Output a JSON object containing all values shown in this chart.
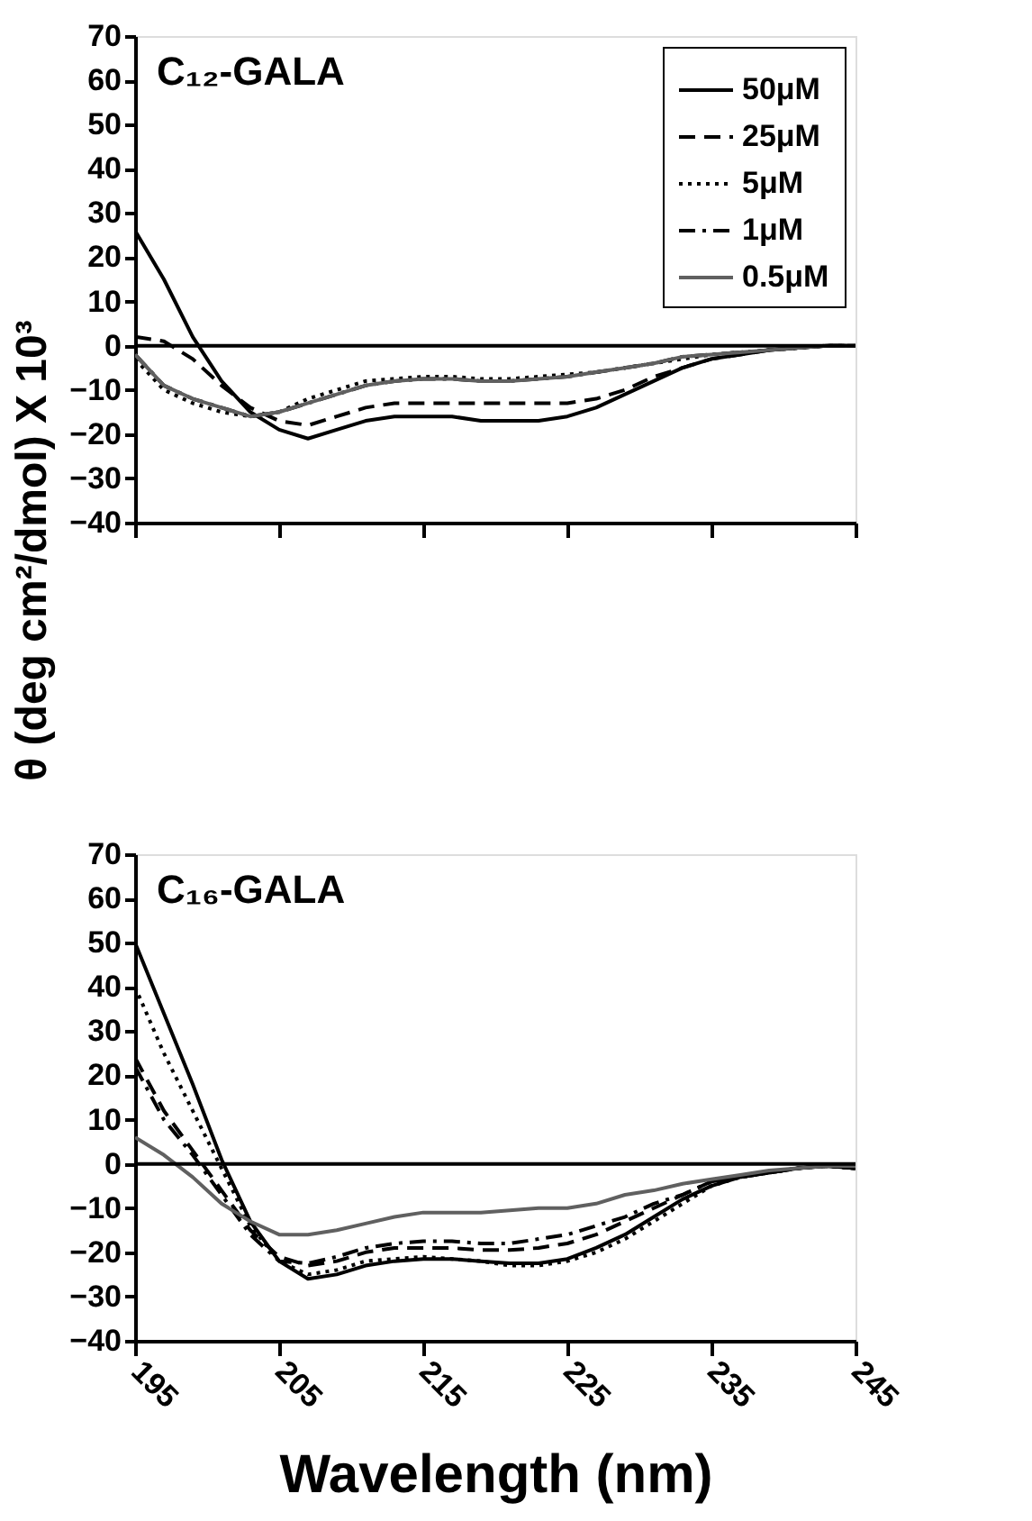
{
  "chart_data": [
    {
      "type": "line",
      "title": "C₁₂-GALA",
      "ylabel": "θ (deg cm²/dmol) X 10³",
      "legend": "top right",
      "tick_labels": "y",
      "grid": false,
      "x": [
        195,
        197,
        199,
        201,
        203,
        205,
        207,
        209,
        211,
        213,
        215,
        217,
        219,
        221,
        223,
        225,
        227,
        229,
        231,
        233,
        235,
        237,
        239,
        241,
        243,
        245
      ],
      "xlim": [
        195,
        245
      ],
      "xticks": [
        195,
        205,
        215,
        225,
        235,
        245
      ],
      "ylim": [
        -40,
        70
      ],
      "yticks": [
        -40,
        -30,
        -20,
        -10,
        0,
        10,
        20,
        30,
        40,
        50,
        60,
        70
      ],
      "ref_lines": [
        {
          "axis": "y",
          "value": 0,
          "color": "#000000"
        }
      ],
      "series": [
        {
          "name": "50μM",
          "color": "#000000",
          "line_style": "solid",
          "values": [
            26,
            15,
            2,
            -8,
            -15,
            -19,
            -21,
            -19,
            -17,
            -16,
            -16,
            -16,
            -17,
            -17,
            -17,
            -16,
            -14,
            -11,
            -8,
            -5,
            -3,
            -2,
            -1,
            -0.5,
            0,
            0
          ]
        },
        {
          "name": "25μM",
          "color": "#000000",
          "line_style": "dashed",
          "values": [
            2,
            1,
            -3,
            -9,
            -14,
            -17,
            -18,
            -16,
            -14,
            -13,
            -13,
            -13,
            -13,
            -13,
            -13,
            -13,
            -12,
            -10,
            -7,
            -5,
            -3,
            -2,
            -1,
            -0.5,
            0,
            0
          ]
        },
        {
          "name": "5μM",
          "color": "#000000",
          "line_style": "dotted",
          "values": [
            -3,
            -10,
            -13,
            -15,
            -16,
            -15,
            -12,
            -10,
            -8,
            -7.5,
            -7,
            -7,
            -7.5,
            -7.5,
            -7,
            -6.5,
            -6,
            -5,
            -4,
            -3,
            -2,
            -1.5,
            -1,
            -0.5,
            0,
            0
          ]
        },
        {
          "name": "1μM",
          "color": "#000000",
          "line_style": "dashdot",
          "values": [
            -2,
            -9,
            -12,
            -14,
            -16,
            -15,
            -13,
            -11,
            -9,
            -8,
            -7.5,
            -7.5,
            -8,
            -8,
            -7.5,
            -7,
            -6,
            -5,
            -4,
            -2.5,
            -2,
            -1.5,
            -1,
            -0.5,
            0,
            0
          ]
        },
        {
          "name": "0.5μM",
          "color": "#606060",
          "line_style": "solid",
          "values": [
            -2,
            -9,
            -12,
            -14,
            -16,
            -15,
            -13,
            -11,
            -9,
            -8,
            -7.5,
            -7.5,
            -8,
            -8,
            -7.5,
            -7,
            -6,
            -5,
            -4,
            -2.5,
            -2,
            -1.5,
            -1,
            -0.5,
            0,
            0
          ]
        }
      ]
    },
    {
      "type": "line",
      "title": "C₁₆-GALA",
      "xlabel": "Wavelength (nm)",
      "legend": false,
      "grid": false,
      "x": [
        195,
        197,
        199,
        201,
        203,
        205,
        207,
        209,
        211,
        213,
        215,
        217,
        219,
        221,
        223,
        225,
        227,
        229,
        231,
        233,
        235,
        237,
        239,
        241,
        243,
        245
      ],
      "xlim": [
        195,
        245
      ],
      "xticks": [
        195,
        205,
        215,
        225,
        235,
        245
      ],
      "ylim": [
        -40,
        70
      ],
      "yticks": [
        -40,
        -30,
        -20,
        -10,
        0,
        10,
        20,
        30,
        40,
        50,
        60,
        70
      ],
      "ref_lines": [
        {
          "axis": "y",
          "value": 0,
          "color": "#000000"
        }
      ],
      "series": [
        {
          "color": "#000000",
          "line_style": "solid",
          "values": [
            50,
            34,
            18,
            1,
            -13,
            -22,
            -26,
            -25,
            -23,
            -22,
            -21.5,
            -21.5,
            -22,
            -22.5,
            -22.5,
            -21.5,
            -19,
            -16,
            -12,
            -8,
            -5,
            -3,
            -2,
            -1,
            -0.5,
            -1
          ]
        },
        {
          "color": "#000000",
          "line_style": "dashed",
          "values": [
            24,
            12,
            3,
            -6,
            -15,
            -21,
            -23,
            -22,
            -20,
            -19,
            -19,
            -19,
            -19.5,
            -19.5,
            -19,
            -18,
            -16,
            -13,
            -10,
            -7,
            -4,
            -3,
            -2,
            -1,
            -0.5,
            -1
          ]
        },
        {
          "color": "#000000",
          "line_style": "dotted",
          "values": [
            40,
            25,
            12,
            -1,
            -14,
            -22,
            -25,
            -24,
            -22,
            -21.5,
            -21,
            -21.5,
            -22,
            -23,
            -23,
            -22,
            -20,
            -17,
            -13,
            -9,
            -5,
            -3,
            -2,
            -1,
            -0.5,
            -1
          ]
        },
        {
          "color": "#000000",
          "line_style": "dashdot",
          "values": [
            22,
            10,
            2,
            -7,
            -16,
            -22,
            -22.5,
            -21,
            -19,
            -18,
            -17.5,
            -17.5,
            -18,
            -18,
            -17,
            -16,
            -14,
            -12,
            -9,
            -7,
            -4,
            -3,
            -2,
            -1,
            -0.5,
            -1
          ]
        },
        {
          "color": "#606060",
          "line_style": "solid",
          "values": [
            6,
            2,
            -3,
            -9,
            -13,
            -16,
            -16,
            -15,
            -13.5,
            -12,
            -11,
            -11,
            -11,
            -10.5,
            -10,
            -10,
            -9,
            -7,
            -6,
            -4.5,
            -3.5,
            -2.5,
            -1.5,
            -1,
            -0.5,
            -0.5
          ]
        }
      ]
    }
  ]
}
